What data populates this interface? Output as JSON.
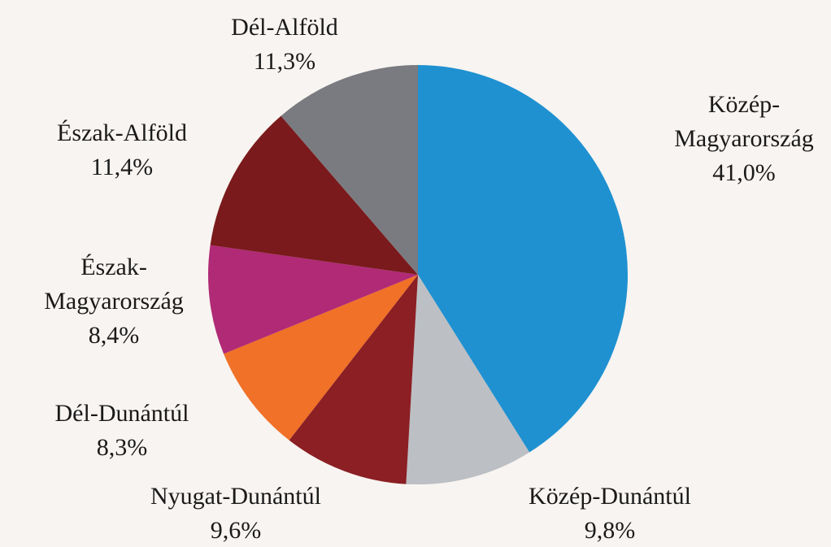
{
  "chart_data": {
    "type": "pie",
    "categories": [
      "Közép-Magyarország",
      "Közép-Dunántúl",
      "Nyugat-Dunántúl",
      "Dél-Dunántúl",
      "Észak-Magyarország",
      "Észak-Alföld",
      "Dél-Alföld"
    ],
    "values": [
      41.0,
      9.8,
      9.6,
      8.3,
      8.4,
      11.4,
      11.3
    ],
    "value_labels": [
      "41,0%",
      "9,8%",
      "9,6%",
      "8,3%",
      "8,4%",
      "11,4%",
      "11,3%"
    ],
    "colors": [
      "#1f91d1",
      "#bcbfc3",
      "#8b1f24",
      "#f07127",
      "#b02a76",
      "#7a1a1c",
      "#7a7b80"
    ]
  }
}
